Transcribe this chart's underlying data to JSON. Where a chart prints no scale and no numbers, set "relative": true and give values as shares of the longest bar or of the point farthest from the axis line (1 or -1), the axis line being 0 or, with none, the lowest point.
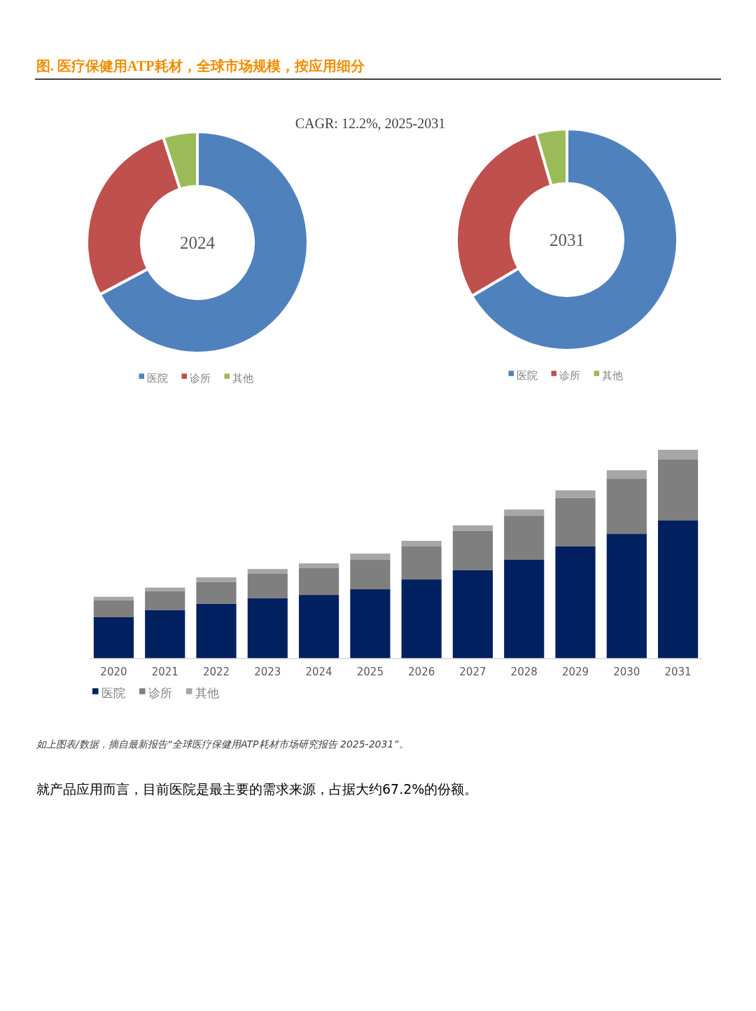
{
  "chart_data": [
    {
      "type": "donut",
      "title": "图. 医疗保健用ATP耗材，全球市场规模，按应用细分",
      "subtitle": "CAGR:  12.2%, 2025-2031",
      "annotations": [
        "2024"
      ],
      "categories": [
        "医院",
        "诊所",
        "其他"
      ],
      "values": [
        67.2,
        27.8,
        5.0
      ],
      "colors": [
        "#4f81bd",
        "#c0504d",
        "#9bbb59"
      ],
      "legend": "bottom"
    },
    {
      "type": "donut",
      "annotations": [
        "2031"
      ],
      "categories": [
        "医院",
        "诊所",
        "其他"
      ],
      "values": [
        66.5,
        29.0,
        4.5
      ],
      "colors": [
        "#4f81bd",
        "#c0504d",
        "#9bbb59"
      ],
      "legend": "bottom"
    },
    {
      "type": "bar",
      "stacked": true,
      "relative": true,
      "legend": "bottom left",
      "categories": [
        "2020",
        "2021",
        "2022",
        "2023",
        "2024",
        "2025",
        "2026",
        "2027",
        "2028",
        "2029",
        "2030",
        "2031"
      ],
      "series": [
        {
          "name": "医院",
          "color": "#002060",
          "values": [
            0.198,
            0.232,
            0.262,
            0.289,
            0.305,
            0.332,
            0.379,
            0.423,
            0.473,
            0.537,
            0.597,
            0.661
          ]
        },
        {
          "name": "诊所",
          "color": "#7f7f7f",
          "values": [
            0.081,
            0.091,
            0.104,
            0.117,
            0.128,
            0.141,
            0.158,
            0.188,
            0.211,
            0.232,
            0.265,
            0.292
          ]
        },
        {
          "name": "其他",
          "color": "#a6a6a6",
          "values": [
            0.017,
            0.017,
            0.023,
            0.023,
            0.023,
            0.03,
            0.027,
            0.027,
            0.03,
            0.037,
            0.04,
            0.047
          ]
        }
      ],
      "annotations": [
        "如上图表/数据，摘自最新报告“全球医疗保健用ATP耗材市场研究报告 2025-2031”。",
        "就产品应用而言，目前医院是最主要的需求来源，占据大约67.2%的份额。"
      ]
    }
  ]
}
